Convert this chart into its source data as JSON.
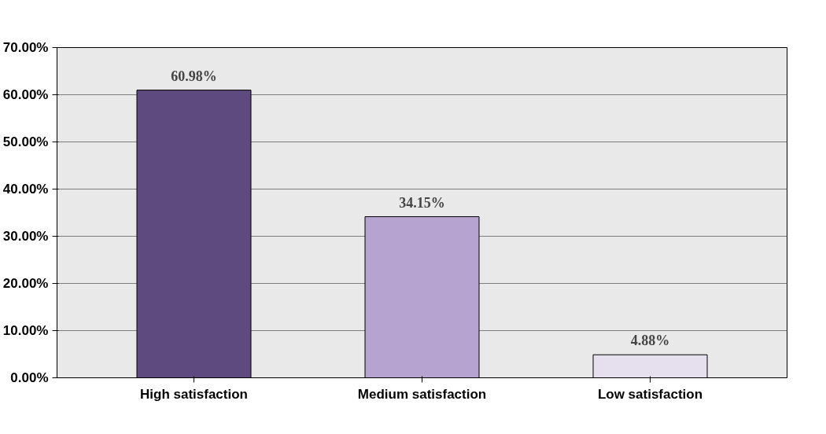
{
  "chart_data": {
    "type": "bar",
    "categories": [
      "High satisfaction",
      "Medium satisfaction",
      "Low satisfaction"
    ],
    "values": [
      60.98,
      34.15,
      4.88
    ],
    "colors": [
      "#5e4a7e",
      "#b7a3cf",
      "#e6e0ee"
    ],
    "value_labels": [
      "60.98%",
      "34.15%",
      "4.88%"
    ],
    "ylim": [
      0,
      70
    ],
    "yticks": [
      {
        "value": 0,
        "label": "0.00%"
      },
      {
        "value": 10,
        "label": "10.00%"
      },
      {
        "value": 20,
        "label": "20.00%"
      },
      {
        "value": 30,
        "label": "30.00%"
      },
      {
        "value": 40,
        "label": "40.00%"
      },
      {
        "value": 50,
        "label": "50.00%"
      },
      {
        "value": 60,
        "label": "60.00%"
      },
      {
        "value": 70,
        "label": "70.00%"
      }
    ],
    "grid": "y"
  }
}
